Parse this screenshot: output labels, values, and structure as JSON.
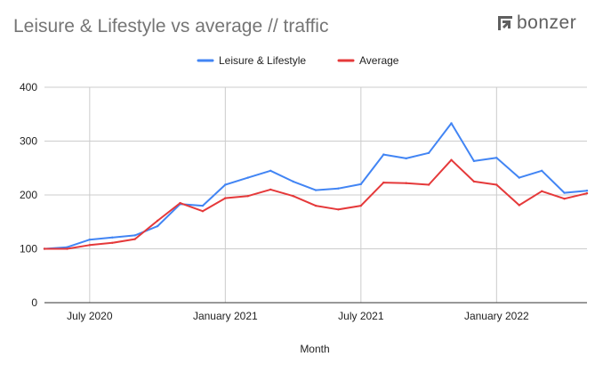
{
  "header": {
    "brand_name": "bonzer",
    "brand_icon": "bonzer-logo-icon"
  },
  "colors": {
    "series_1": "#4285f4",
    "series_2": "#e5393a",
    "grid": "#cccccc",
    "baseline": "#333333",
    "title": "#757575"
  },
  "chart_data": {
    "type": "line",
    "title": "Leisure & Lifestyle vs average // traffic",
    "xlabel": "Month",
    "ylabel": "",
    "ylim": [
      0,
      400
    ],
    "yticks": [
      0,
      100,
      200,
      300,
      400
    ],
    "grid": true,
    "legend_position": "top-center",
    "x_ticks": [
      {
        "label": "July 2020",
        "month_index": 2
      },
      {
        "label": "January 2021",
        "month_index": 8
      },
      {
        "label": "July 2021",
        "month_index": 14
      },
      {
        "label": "January 2022",
        "month_index": 20
      }
    ],
    "x": [
      "2020-05",
      "2020-06",
      "2020-07",
      "2020-08",
      "2020-09",
      "2020-10",
      "2020-11",
      "2020-12",
      "2021-01",
      "2021-02",
      "2021-03",
      "2021-04",
      "2021-05",
      "2021-06",
      "2021-07",
      "2021-08",
      "2021-09",
      "2021-10",
      "2021-11",
      "2021-12",
      "2022-01",
      "2022-02",
      "2022-03",
      "2022-04",
      "2022-05"
    ],
    "series": [
      {
        "name": "Leisure & Lifestyle",
        "color": "#4285f4",
        "values": [
          100,
          103,
          117,
          121,
          125,
          142,
          183,
          180,
          219,
          232,
          245,
          225,
          209,
          212,
          220,
          275,
          268,
          278,
          333,
          263,
          269,
          232,
          245,
          204,
          208
        ]
      },
      {
        "name": "Average",
        "color": "#e5393a",
        "values": [
          100,
          100,
          107,
          111,
          118,
          152,
          185,
          170,
          194,
          198,
          210,
          198,
          180,
          173,
          180,
          223,
          222,
          219,
          265,
          225,
          219,
          181,
          207,
          193,
          203
        ]
      }
    ]
  }
}
